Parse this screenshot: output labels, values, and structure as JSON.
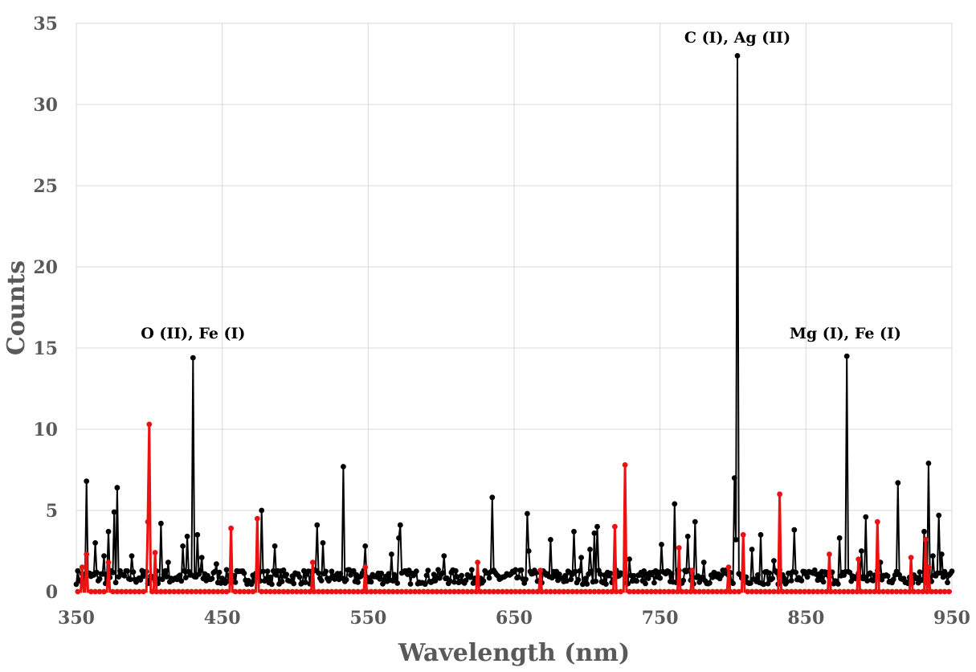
{
  "chart_data": {
    "type": "line",
    "title": "",
    "xlabel": "Wavelength (nm)",
    "ylabel": "Counts",
    "xlim": [
      350,
      950
    ],
    "ylim": [
      0,
      35
    ],
    "xticks": [
      350,
      450,
      550,
      650,
      750,
      850,
      950
    ],
    "yticks": [
      0,
      5,
      10,
      15,
      20,
      25,
      30,
      35
    ],
    "grid": true,
    "legend": "none",
    "annotations": [
      {
        "text": "O (II), Fe (I)",
        "x": 430,
        "y": 15.6
      },
      {
        "text": "C (I), Ag (II)",
        "x": 803,
        "y": 33.8
      },
      {
        "text": "Mg (I), Fe (I)",
        "x": 877,
        "y": 15.6
      }
    ],
    "series": [
      {
        "name": "black",
        "color": "#000000",
        "baseline": 0.9,
        "peaks": [
          {
            "x": 357,
            "y": 6.8
          },
          {
            "x": 363,
            "y": 3.0
          },
          {
            "x": 369,
            "y": 2.2
          },
          {
            "x": 372,
            "y": 3.7
          },
          {
            "x": 376,
            "y": 4.9
          },
          {
            "x": 378,
            "y": 6.4
          },
          {
            "x": 388,
            "y": 2.2
          },
          {
            "x": 408,
            "y": 4.2
          },
          {
            "x": 413,
            "y": 1.8
          },
          {
            "x": 423,
            "y": 2.8
          },
          {
            "x": 426,
            "y": 3.4
          },
          {
            "x": 430,
            "y": 14.4
          },
          {
            "x": 433,
            "y": 3.5
          },
          {
            "x": 436,
            "y": 2.1
          },
          {
            "x": 446,
            "y": 1.7
          },
          {
            "x": 477,
            "y": 5.0
          },
          {
            "x": 486,
            "y": 2.8
          },
          {
            "x": 515,
            "y": 4.1
          },
          {
            "x": 519,
            "y": 3.0
          },
          {
            "x": 533,
            "y": 7.7
          },
          {
            "x": 548,
            "y": 2.8
          },
          {
            "x": 566,
            "y": 2.3
          },
          {
            "x": 571,
            "y": 3.3
          },
          {
            "x": 572,
            "y": 4.1
          },
          {
            "x": 602,
            "y": 2.2
          },
          {
            "x": 635,
            "y": 5.8
          },
          {
            "x": 659,
            "y": 4.8
          },
          {
            "x": 660,
            "y": 2.5
          },
          {
            "x": 675,
            "y": 3.2
          },
          {
            "x": 691,
            "y": 3.7
          },
          {
            "x": 696,
            "y": 2.1
          },
          {
            "x": 702,
            "y": 2.6
          },
          {
            "x": 705,
            "y": 3.6
          },
          {
            "x": 707,
            "y": 4.0
          },
          {
            "x": 729,
            "y": 2.0
          },
          {
            "x": 751,
            "y": 2.9
          },
          {
            "x": 760,
            "y": 5.4
          },
          {
            "x": 769,
            "y": 3.4
          },
          {
            "x": 774,
            "y": 4.3
          },
          {
            "x": 780,
            "y": 1.8
          },
          {
            "x": 801,
            "y": 7.0
          },
          {
            "x": 802,
            "y": 3.2
          },
          {
            "x": 803,
            "y": 33.0
          },
          {
            "x": 813,
            "y": 2.6
          },
          {
            "x": 819,
            "y": 3.5
          },
          {
            "x": 828,
            "y": 1.9
          },
          {
            "x": 842,
            "y": 3.8
          },
          {
            "x": 873,
            "y": 3.3
          },
          {
            "x": 878,
            "y": 14.5
          },
          {
            "x": 888,
            "y": 2.5
          },
          {
            "x": 891,
            "y": 4.6
          },
          {
            "x": 901,
            "y": 1.8
          },
          {
            "x": 913,
            "y": 6.7
          },
          {
            "x": 931,
            "y": 3.7
          },
          {
            "x": 934,
            "y": 7.9
          },
          {
            "x": 937,
            "y": 2.2
          },
          {
            "x": 941,
            "y": 4.7
          },
          {
            "x": 943,
            "y": 2.3
          }
        ]
      },
      {
        "name": "red",
        "color": "#ee1111",
        "baseline": 0,
        "peaks": [
          {
            "x": 354,
            "y": 1.5
          },
          {
            "x": 357,
            "y": 2.3
          },
          {
            "x": 372,
            "y": 1.8
          },
          {
            "x": 399,
            "y": 4.3
          },
          {
            "x": 400,
            "y": 10.3
          },
          {
            "x": 404,
            "y": 2.4
          },
          {
            "x": 456,
            "y": 3.9
          },
          {
            "x": 474,
            "y": 4.5
          },
          {
            "x": 512,
            "y": 1.8
          },
          {
            "x": 548,
            "y": 1.5
          },
          {
            "x": 625,
            "y": 1.8
          },
          {
            "x": 668,
            "y": 1.3
          },
          {
            "x": 719,
            "y": 4.0
          },
          {
            "x": 726,
            "y": 7.8
          },
          {
            "x": 763,
            "y": 2.7
          },
          {
            "x": 772,
            "y": 1.3
          },
          {
            "x": 797,
            "y": 1.5
          },
          {
            "x": 807,
            "y": 3.5
          },
          {
            "x": 832,
            "y": 6.0
          },
          {
            "x": 866,
            "y": 2.3
          },
          {
            "x": 886,
            "y": 2.0
          },
          {
            "x": 899,
            "y": 4.3
          },
          {
            "x": 922,
            "y": 2.1
          },
          {
            "x": 932,
            "y": 3.2
          },
          {
            "x": 934,
            "y": 1.5
          }
        ]
      }
    ]
  }
}
